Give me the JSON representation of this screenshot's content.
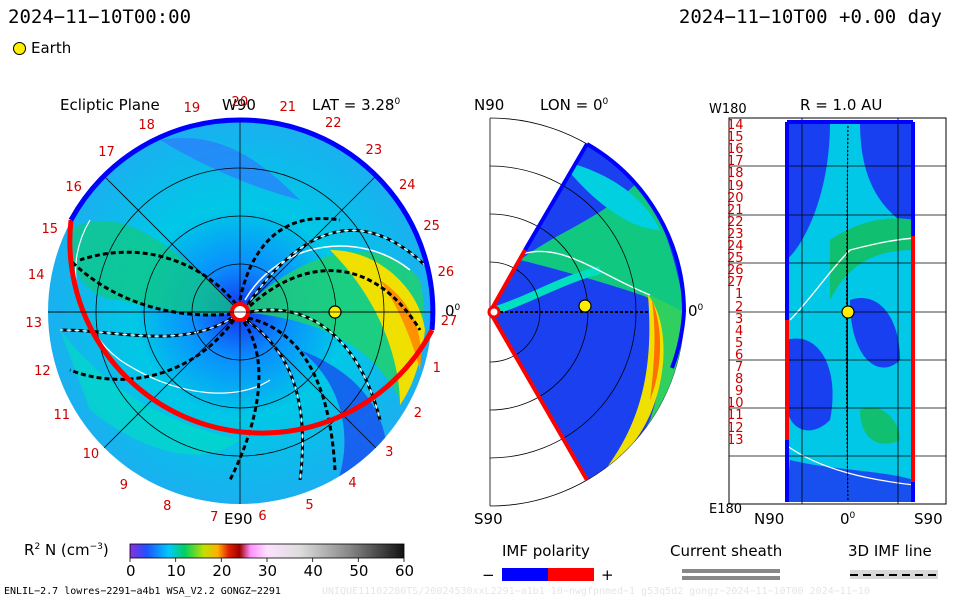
{
  "header": {
    "left_time": "2024−11−10T00:00",
    "right_time": "2024−11−10T00 +0.00 day"
  },
  "legend_top": {
    "earth_label": "Earth",
    "earth_color": "#ffee00"
  },
  "ecliptic": {
    "title": "Ecliptic Plane",
    "lat_label": "LAT = 3.28",
    "lat_sup": "0",
    "top_label": "W90",
    "bottom_label": "E90",
    "right_label": "0",
    "right_sup": "0",
    "carrington_ticks": [
      "1",
      "2",
      "3",
      "4",
      "5",
      "6",
      "7",
      "8",
      "9",
      "10",
      "11",
      "12",
      "13",
      "14",
      "15",
      "16",
      "17",
      "18",
      "19",
      "20",
      "21",
      "22",
      "23",
      "24",
      "25",
      "26",
      "27"
    ]
  },
  "meridional": {
    "title": "LON = 0",
    "title_sup": "0",
    "top_left": "N90",
    "bottom_left": "S90",
    "right_label": "0",
    "right_sup": "0"
  },
  "rmap": {
    "title": "R = 1.0 AU",
    "top_left": "W180",
    "bottom_left": "E180",
    "x_ticks": [
      "N90",
      "0",
      "S90"
    ],
    "x_zero_sup": "0",
    "y_ticks": [
      "14",
      "15",
      "16",
      "17",
      "18",
      "19",
      "20",
      "21",
      "22",
      "23",
      "24",
      "25",
      "26",
      "27",
      "1",
      "2",
      "3",
      "4",
      "5",
      "6",
      "7",
      "8",
      "9",
      "10",
      "11",
      "12",
      "13"
    ]
  },
  "colorbar": {
    "label_main": "R",
    "label_sup": "2",
    "label_rest": " N (cm",
    "label_exp": "−3",
    "label_end": ")",
    "ticks": [
      "0",
      "10",
      "20",
      "30",
      "40",
      "50",
      "60"
    ]
  },
  "imf": {
    "title": "IMF polarity",
    "minus": "−",
    "plus": "+",
    "neg_color": "#0000ff",
    "pos_color": "#ff0000"
  },
  "sheath": {
    "title": "Current sheath"
  },
  "imf3d": {
    "title": "3D IMF line"
  },
  "footer": {
    "model": "ENLIL−2.7 lowres−2291−a4b1 WSA_V2.2 GONGZ−2291",
    "run_id": "UNIQUE11102280TS/20024530xxL2291−a1b1 10−nwgfpnmed−1 g53q5d2 gongz−2024−11−10T00   2024−11−10"
  }
}
